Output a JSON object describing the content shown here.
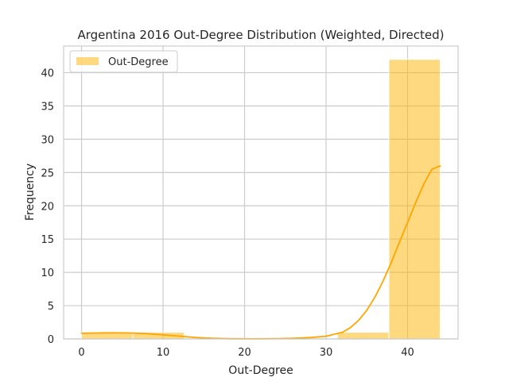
{
  "chart_data": {
    "type": "bar",
    "title": "Argentina 2016 Out-Degree Distribution (Weighted, Directed)",
    "xlabel": "Out-Degree",
    "ylabel": "Frequency",
    "xlim": [
      -2.2,
      46.2
    ],
    "ylim": [
      0,
      44
    ],
    "xticks": [
      0,
      10,
      20,
      30,
      40
    ],
    "yticks": [
      0,
      5,
      10,
      15,
      20,
      25,
      30,
      35,
      40
    ],
    "grid": true,
    "legend_position": "top-left",
    "series": [
      {
        "name": "Out-Degree",
        "kind": "histogram",
        "color": "#ffb400",
        "bins": [
          {
            "x0": 0,
            "x1": 6.3,
            "count": 1
          },
          {
            "x0": 6.3,
            "x1": 12.6,
            "count": 1
          },
          {
            "x0": 12.6,
            "x1": 18.9,
            "count": 0
          },
          {
            "x0": 18.9,
            "x1": 25.1,
            "count": 0
          },
          {
            "x0": 25.1,
            "x1": 31.4,
            "count": 0
          },
          {
            "x0": 31.4,
            "x1": 37.7,
            "count": 1
          },
          {
            "x0": 37.7,
            "x1": 44.0,
            "count": 42
          }
        ]
      },
      {
        "kind": "kde",
        "color": "#ffa500",
        "x": [
          0,
          2,
          4,
          6,
          8,
          10,
          12,
          14,
          16,
          18,
          20,
          22,
          24,
          26,
          28,
          30,
          32,
          33,
          34,
          35,
          36,
          37,
          38,
          39,
          40,
          41,
          42,
          43,
          44
        ],
        "y": [
          0.85,
          0.9,
          0.92,
          0.9,
          0.8,
          0.62,
          0.42,
          0.22,
          0.1,
          0.04,
          0.02,
          0.02,
          0.05,
          0.1,
          0.2,
          0.4,
          1.0,
          1.7,
          2.8,
          4.3,
          6.3,
          8.7,
          11.5,
          14.5,
          17.5,
          20.5,
          23.3,
          25.5,
          26.0
        ]
      }
    ]
  }
}
